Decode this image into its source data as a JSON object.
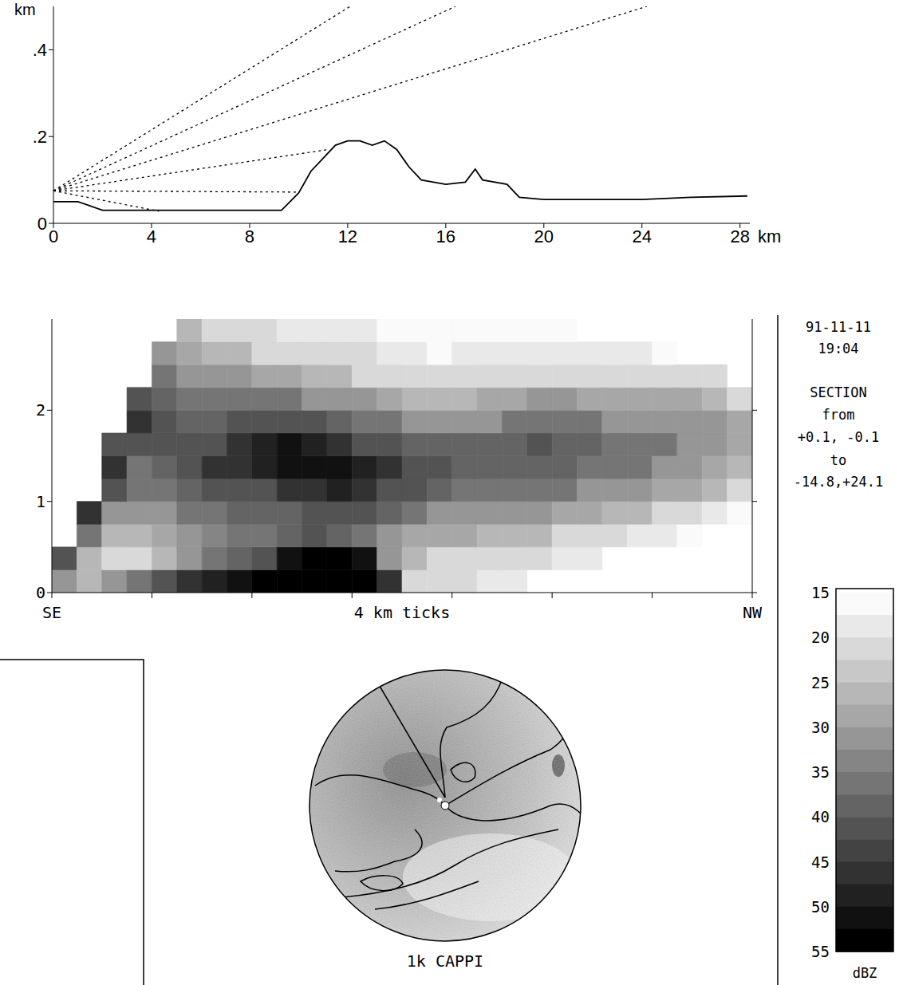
{
  "chart_data": [
    {
      "type": "line",
      "x_label": "km",
      "y_label": "km",
      "xlim": [
        0,
        28.4
      ],
      "xticks": [
        0,
        4,
        8,
        12,
        16,
        20,
        24,
        28
      ],
      "ylim": [
        0,
        0.5
      ],
      "yticks": [
        0,
        {
          "value": 0.2,
          "label": ".2"
        },
        {
          "value": 0.4,
          "label": ".4"
        }
      ],
      "series": [
        {
          "x": [
            0,
            1,
            2,
            4,
            8,
            9.3,
            10,
            10.5,
            11.5,
            12,
            12.5,
            13,
            13.5,
            14,
            14.5,
            15,
            16,
            16.8,
            17.2,
            17.5,
            18.5,
            19,
            20,
            24,
            26,
            28.3
          ],
          "values": [
            0.05,
            0.05,
            0.03,
            0.03,
            0.03,
            0.03,
            0.07,
            0.12,
            0.18,
            0.19,
            0.19,
            0.18,
            0.19,
            0.17,
            0.13,
            0.1,
            0.09,
            0.095,
            0.125,
            0.1,
            0.09,
            0.06,
            0.055,
            0.055,
            0.06,
            0.063
          ],
          "color": "#000000",
          "line_style": "solid"
        },
        {
          "x": [
            0,
            12.1
          ],
          "values": [
            0.075,
            0.5
          ],
          "color": "#000000",
          "line_style": "dotted"
        },
        {
          "x": [
            0,
            16.4
          ],
          "values": [
            0.075,
            0.5
          ],
          "color": "#000000",
          "line_style": "dotted"
        },
        {
          "x": [
            0,
            24.2
          ],
          "values": [
            0.075,
            0.5
          ],
          "color": "#000000",
          "line_style": "dotted"
        },
        {
          "x": [
            0,
            11.2
          ],
          "values": [
            0.075,
            0.17
          ],
          "color": "#000000",
          "line_style": "dotted"
        },
        {
          "x": [
            0,
            10
          ],
          "values": [
            0.075,
            0.072
          ],
          "color": "#000000",
          "line_style": "dotted"
        },
        {
          "x": [
            0,
            4.3
          ],
          "values": [
            0.075,
            0.028
          ],
          "color": "#000000",
          "line_style": "dotted"
        }
      ]
    },
    {
      "type": "heatmap",
      "x_label": "4 km ticks",
      "x_start_label": "SE",
      "x_end_label": "NW",
      "tick_labels": "y",
      "xlim": [
        0,
        28
      ],
      "xticks": [
        0,
        4,
        8,
        12,
        16,
        20,
        24,
        28
      ],
      "ylim": [
        0,
        3
      ],
      "yticks": [
        0,
        1,
        2
      ],
      "x_edges": [
        0,
        1,
        2,
        3,
        4,
        5,
        6,
        7,
        8,
        9,
        10,
        11,
        12,
        13,
        14,
        15,
        16,
        17,
        18,
        19,
        20,
        21,
        22,
        23,
        24,
        25,
        26,
        27,
        28
      ],
      "y_edges": [
        0,
        0.25,
        0.5,
        0.75,
        1,
        1.25,
        1.5,
        1.75,
        2,
        2.25,
        2.5,
        2.75,
        3
      ],
      "cells": [
        [
          30,
          40,
          null,
          null,
          null,
          null,
          null,
          null,
          null,
          null,
          null,
          null
        ],
        [
          25,
          25,
          35,
          45,
          null,
          null,
          null,
          null,
          null,
          null,
          null,
          null
        ],
        [
          30,
          22,
          25,
          30,
          40,
          45,
          40,
          null,
          null,
          null,
          null,
          null
        ],
        [
          35,
          22,
          25,
          30,
          35,
          35,
          40,
          45,
          40,
          null,
          null,
          null
        ],
        [
          40,
          25,
          28,
          32,
          35,
          38,
          40,
          40,
          38,
          35,
          30,
          null
        ],
        [
          45,
          30,
          32,
          35,
          38,
          42,
          40,
          38,
          35,
          32,
          28,
          25
        ],
        [
          48,
          35,
          33,
          35,
          40,
          45,
          42,
          38,
          35,
          30,
          25,
          22
        ],
        [
          50,
          38,
          35,
          38,
          42,
          45,
          45,
          40,
          35,
          30,
          25,
          20
        ],
        [
          55,
          42,
          35,
          38,
          42,
          48,
          48,
          40,
          35,
          28,
          22,
          20
        ],
        [
          56,
          52,
          38,
          38,
          45,
          50,
          50,
          42,
          35,
          28,
          22,
          18
        ],
        [
          56,
          56,
          40,
          40,
          45,
          50,
          48,
          40,
          32,
          25,
          20,
          18
        ],
        [
          56,
          56,
          38,
          40,
          48,
          52,
          45,
          38,
          30,
          25,
          20,
          18
        ],
        [
          56,
          52,
          35,
          40,
          45,
          48,
          42,
          35,
          30,
          22,
          20,
          18
        ],
        [
          45,
          30,
          30,
          38,
          42,
          45,
          40,
          35,
          28,
          22,
          18,
          16
        ],
        [
          22,
          25,
          28,
          35,
          40,
          42,
          38,
          32,
          25,
          20,
          18,
          16
        ],
        [
          20,
          22,
          28,
          32,
          38,
          40,
          38,
          32,
          25,
          20,
          16,
          16
        ],
        [
          20,
          22,
          28,
          32,
          35,
          38,
          38,
          32,
          25,
          20,
          18,
          15
        ],
        [
          18,
          22,
          25,
          30,
          35,
          38,
          38,
          32,
          28,
          20,
          18,
          16
        ],
        [
          18,
          20,
          25,
          30,
          35,
          38,
          38,
          35,
          28,
          22,
          18,
          16
        ],
        [
          null,
          20,
          25,
          30,
          35,
          38,
          40,
          35,
          30,
          22,
          18,
          16
        ],
        [
          null,
          18,
          22,
          28,
          35,
          38,
          38,
          35,
          30,
          22,
          18,
          16
        ],
        [
          null,
          18,
          22,
          28,
          32,
          35,
          38,
          35,
          28,
          22,
          18,
          null
        ],
        [
          null,
          null,
          20,
          25,
          30,
          35,
          35,
          32,
          28,
          20,
          18,
          null
        ],
        [
          null,
          null,
          18,
          25,
          30,
          35,
          35,
          32,
          28,
          22,
          18,
          null
        ],
        [
          null,
          null,
          18,
          22,
          28,
          32,
          35,
          32,
          28,
          22,
          16,
          null
        ],
        [
          null,
          null,
          16,
          20,
          28,
          30,
          32,
          32,
          28,
          20,
          null,
          null
        ],
        [
          null,
          null,
          null,
          18,
          25,
          28,
          30,
          30,
          25,
          20,
          null,
          null
        ],
        [
          null,
          null,
          null,
          16,
          22,
          25,
          28,
          28,
          22,
          null,
          null,
          null
        ]
      ],
      "colorbar": {
        "range": [
          15,
          55
        ],
        "ticks": [
          15,
          20,
          25,
          30,
          35,
          40,
          45,
          50,
          55
        ],
        "label": "dBZ"
      },
      "annotations": [
        "91-11-11",
        "19:04",
        "SECTION",
        "from",
        "+0.1, -0.1",
        "to",
        "-14.8,+24.1"
      ]
    }
  ],
  "cappi_label": "1k CAPPI"
}
